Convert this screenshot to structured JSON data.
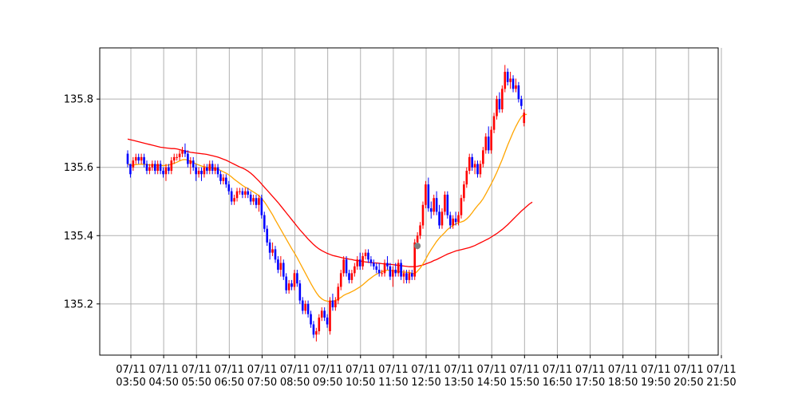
{
  "chart_data": {
    "type": "candlestick",
    "title": "",
    "xlabel": "",
    "ylabel": "",
    "ylim": [
      135.05,
      135.95
    ],
    "grid": true,
    "legend": "none",
    "y_ticks": [
      135.2,
      135.4,
      135.6,
      135.8
    ],
    "y_tick_labels": [
      "135.2",
      "135.4",
      "135.6",
      "135.8"
    ],
    "x_ticks": [
      {
        "date": "07/11",
        "time": "03:50"
      },
      {
        "date": "07/11",
        "time": "04:50"
      },
      {
        "date": "07/11",
        "time": "05:50"
      },
      {
        "date": "07/11",
        "time": "06:50"
      },
      {
        "date": "07/11",
        "time": "07:50"
      },
      {
        "date": "07/11",
        "time": "08:50"
      },
      {
        "date": "07/11",
        "time": "09:50"
      },
      {
        "date": "07/11",
        "time": "10:50"
      },
      {
        "date": "07/11",
        "time": "11:50"
      },
      {
        "date": "07/11",
        "time": "12:50"
      },
      {
        "date": "07/11",
        "time": "13:50"
      },
      {
        "date": "07/11",
        "time": "14:50"
      },
      {
        "date": "07/11",
        "time": "15:50"
      },
      {
        "date": "07/11",
        "time": "16:50"
      },
      {
        "date": "07/11",
        "time": "17:50"
      },
      {
        "date": "07/11",
        "time": "18:50"
      },
      {
        "date": "07/11",
        "time": "19:50"
      },
      {
        "date": "07/11",
        "time": "20:50"
      },
      {
        "date": "07/11",
        "time": "21:50"
      }
    ],
    "bar_interval_minutes": 5,
    "first_bar_time": "07/11 03:50",
    "up_color": "#ff0000",
    "down_color": "#0000ff",
    "candles": [
      [
        135.64,
        135.65,
        135.6,
        135.61
      ],
      [
        135.61,
        135.61,
        135.57,
        135.58
      ],
      [
        135.6,
        135.63,
        135.59,
        135.62
      ],
      [
        135.62,
        135.64,
        135.61,
        135.63
      ],
      [
        135.63,
        135.64,
        135.61,
        135.62
      ],
      [
        135.62,
        135.64,
        135.61,
        135.63
      ],
      [
        135.63,
        135.64,
        135.6,
        135.61
      ],
      [
        135.61,
        135.62,
        135.58,
        135.59
      ],
      [
        135.59,
        135.61,
        135.58,
        135.6
      ],
      [
        135.6,
        135.62,
        135.59,
        135.61
      ],
      [
        135.61,
        135.62,
        135.58,
        135.59
      ],
      [
        135.59,
        135.62,
        135.58,
        135.61
      ],
      [
        135.61,
        135.62,
        135.58,
        135.59
      ],
      [
        135.59,
        135.6,
        135.57,
        135.58
      ],
      [
        135.58,
        135.61,
        135.56,
        135.6
      ],
      [
        135.6,
        135.61,
        135.58,
        135.59
      ],
      [
        135.59,
        135.63,
        135.58,
        135.62
      ],
      [
        135.62,
        135.64,
        135.61,
        135.63
      ],
      [
        135.63,
        135.64,
        135.62,
        135.63
      ],
      [
        135.63,
        135.65,
        135.62,
        135.64
      ],
      [
        135.64,
        135.66,
        135.63,
        135.65
      ],
      [
        135.65,
        135.67,
        135.63,
        135.64
      ],
      [
        135.64,
        135.65,
        135.6,
        135.61
      ],
      [
        135.61,
        135.63,
        135.58,
        135.62
      ],
      [
        135.62,
        135.63,
        135.59,
        135.6
      ],
      [
        135.6,
        135.61,
        135.56,
        135.58
      ],
      [
        135.58,
        135.6,
        135.57,
        135.59
      ],
      [
        135.59,
        135.6,
        135.56,
        135.58
      ],
      [
        135.58,
        135.61,
        135.57,
        135.6
      ],
      [
        135.6,
        135.61,
        135.58,
        135.59
      ],
      [
        135.59,
        135.62,
        135.58,
        135.61
      ],
      [
        135.61,
        135.62,
        135.58,
        135.59
      ],
      [
        135.59,
        135.61,
        135.58,
        135.6
      ],
      [
        135.6,
        135.61,
        135.57,
        135.58
      ],
      [
        135.58,
        135.59,
        135.55,
        135.56
      ],
      [
        135.56,
        135.58,
        135.55,
        135.57
      ],
      [
        135.57,
        135.58,
        135.54,
        135.55
      ],
      [
        135.55,
        135.56,
        135.52,
        135.53
      ],
      [
        135.53,
        135.54,
        135.49,
        135.5
      ],
      [
        135.5,
        135.52,
        135.49,
        135.51
      ],
      [
        135.51,
        135.54,
        135.5,
        135.53
      ],
      [
        135.53,
        135.54,
        135.52,
        135.53
      ],
      [
        135.53,
        135.54,
        135.51,
        135.52
      ],
      [
        135.52,
        135.54,
        135.51,
        135.53
      ],
      [
        135.53,
        135.54,
        135.51,
        135.52
      ],
      [
        135.52,
        135.53,
        135.49,
        135.5
      ],
      [
        135.5,
        135.52,
        135.49,
        135.51
      ],
      [
        135.51,
        135.52,
        135.48,
        135.49
      ],
      [
        135.49,
        135.52,
        135.47,
        135.51
      ],
      [
        135.51,
        135.52,
        135.45,
        135.46
      ],
      [
        135.46,
        135.47,
        135.41,
        135.42
      ],
      [
        135.42,
        135.43,
        135.37,
        135.38
      ],
      [
        135.38,
        135.39,
        135.33,
        135.35
      ],
      [
        135.35,
        135.38,
        135.34,
        135.36
      ],
      [
        135.36,
        135.37,
        135.32,
        135.33
      ],
      [
        135.33,
        135.34,
        135.29,
        135.3
      ],
      [
        135.3,
        135.34,
        135.28,
        135.32
      ],
      [
        135.32,
        135.33,
        135.27,
        135.28
      ],
      [
        135.28,
        135.29,
        135.23,
        135.24
      ],
      [
        135.24,
        135.27,
        135.23,
        135.26
      ],
      [
        135.26,
        135.27,
        135.24,
        135.25
      ],
      [
        135.25,
        135.3,
        135.24,
        135.29
      ],
      [
        135.29,
        135.3,
        135.25,
        135.26
      ],
      [
        135.26,
        135.27,
        135.2,
        135.21
      ],
      [
        135.21,
        135.22,
        135.17,
        135.18
      ],
      [
        135.18,
        135.21,
        135.17,
        135.2
      ],
      [
        135.2,
        135.21,
        135.16,
        135.17
      ],
      [
        135.17,
        135.18,
        135.13,
        135.14
      ],
      [
        135.14,
        135.15,
        135.1,
        135.11
      ],
      [
        135.11,
        135.13,
        135.09,
        135.12
      ],
      [
        135.12,
        135.17,
        135.11,
        135.16
      ],
      [
        135.16,
        135.19,
        135.15,
        135.18
      ],
      [
        135.18,
        135.19,
        135.15,
        135.16
      ],
      [
        135.16,
        135.17,
        135.13,
        135.14
      ],
      [
        135.12,
        135.22,
        135.11,
        135.21
      ],
      [
        135.21,
        135.23,
        135.18,
        135.19
      ],
      [
        135.19,
        135.22,
        135.18,
        135.21
      ],
      [
        135.21,
        135.26,
        135.2,
        135.25
      ],
      [
        135.25,
        135.3,
        135.24,
        135.29
      ],
      [
        135.29,
        135.34,
        135.28,
        135.33
      ],
      [
        135.33,
        135.34,
        135.28,
        135.29
      ],
      [
        135.29,
        135.3,
        135.26,
        135.27
      ],
      [
        135.27,
        135.3,
        135.26,
        135.29
      ],
      [
        135.29,
        135.32,
        135.28,
        135.31
      ],
      [
        135.31,
        135.34,
        135.3,
        135.33
      ],
      [
        135.33,
        135.35,
        135.3,
        135.31
      ],
      [
        135.31,
        135.35,
        135.3,
        135.34
      ],
      [
        135.34,
        135.36,
        135.33,
        135.35
      ],
      [
        135.35,
        135.36,
        135.32,
        135.33
      ],
      [
        135.33,
        135.34,
        135.31,
        135.32
      ],
      [
        135.32,
        135.33,
        135.3,
        135.31
      ],
      [
        135.31,
        135.32,
        135.29,
        135.3
      ],
      [
        135.3,
        135.32,
        135.28,
        135.29
      ],
      [
        135.29,
        135.3,
        135.28,
        135.29
      ],
      [
        135.29,
        135.33,
        135.28,
        135.32
      ],
      [
        135.32,
        135.34,
        135.3,
        135.31
      ],
      [
        135.31,
        135.32,
        135.27,
        135.28
      ],
      [
        135.28,
        135.31,
        135.25,
        135.3
      ],
      [
        135.3,
        135.32,
        135.28,
        135.29
      ],
      [
        135.29,
        135.33,
        135.28,
        135.32
      ],
      [
        135.32,
        135.33,
        135.27,
        135.28
      ],
      [
        135.28,
        135.3,
        135.26,
        135.29
      ],
      [
        135.29,
        135.3,
        135.26,
        135.27
      ],
      [
        135.27,
        135.3,
        135.26,
        135.29
      ],
      [
        135.29,
        135.3,
        135.27,
        135.28
      ],
      [
        135.28,
        135.39,
        135.27,
        135.38
      ],
      [
        135.38,
        135.41,
        135.36,
        135.4
      ],
      [
        135.4,
        135.44,
        135.39,
        135.43
      ],
      [
        135.43,
        135.5,
        135.42,
        135.49
      ],
      [
        135.49,
        135.56,
        135.48,
        135.55
      ],
      [
        135.55,
        135.57,
        135.47,
        135.48
      ],
      [
        135.48,
        135.5,
        135.45,
        135.47
      ],
      [
        135.47,
        135.52,
        135.46,
        135.51
      ],
      [
        135.51,
        135.53,
        135.46,
        135.47
      ],
      [
        135.47,
        135.49,
        135.42,
        135.43
      ],
      [
        135.43,
        135.48,
        135.42,
        135.47
      ],
      [
        135.47,
        135.53,
        135.46,
        135.52
      ],
      [
        135.52,
        135.53,
        135.45,
        135.46
      ],
      [
        135.46,
        135.47,
        135.42,
        135.43
      ],
      [
        135.43,
        135.46,
        135.42,
        135.45
      ],
      [
        135.45,
        135.47,
        135.43,
        135.44
      ],
      [
        135.44,
        135.47,
        135.43,
        135.46
      ],
      [
        135.46,
        135.52,
        135.45,
        135.51
      ],
      [
        135.51,
        135.56,
        135.5,
        135.55
      ],
      [
        135.55,
        135.6,
        135.54,
        135.59
      ],
      [
        135.59,
        135.64,
        135.58,
        135.63
      ],
      [
        135.63,
        135.64,
        135.59,
        135.6
      ],
      [
        135.6,
        135.62,
        135.58,
        135.61
      ],
      [
        135.61,
        135.62,
        135.57,
        135.58
      ],
      [
        135.58,
        135.62,
        135.57,
        135.61
      ],
      [
        135.61,
        135.66,
        135.6,
        135.65
      ],
      [
        135.65,
        135.7,
        135.64,
        135.69
      ],
      [
        135.69,
        135.72,
        135.64,
        135.65
      ],
      [
        135.65,
        135.72,
        135.64,
        135.71
      ],
      [
        135.71,
        135.76,
        135.7,
        135.75
      ],
      [
        135.75,
        135.81,
        135.74,
        135.8
      ],
      [
        135.8,
        135.82,
        135.76,
        135.77
      ],
      [
        135.77,
        135.84,
        135.76,
        135.83
      ],
      [
        135.83,
        135.9,
        135.82,
        135.88
      ],
      [
        135.88,
        135.89,
        135.84,
        135.85
      ],
      [
        135.85,
        135.88,
        135.83,
        135.86
      ],
      [
        135.86,
        135.87,
        135.82,
        135.83
      ],
      [
        135.83,
        135.86,
        135.82,
        135.84
      ],
      [
        135.84,
        135.85,
        135.79,
        135.8
      ],
      [
        135.8,
        135.81,
        135.77,
        135.78
      ],
      [
        135.73,
        135.77,
        135.72,
        135.76
      ]
    ],
    "sma_short": {
      "color": "#ffa500",
      "values": [
        135.61,
        135.605,
        135.607,
        135.608,
        135.609,
        135.609,
        135.609,
        135.608,
        135.607,
        135.607,
        135.607,
        135.606,
        135.606,
        135.605,
        135.606,
        135.607,
        135.609,
        135.612,
        135.615,
        135.619,
        135.622,
        135.623,
        135.621,
        135.618,
        135.614,
        135.61,
        135.607,
        135.604,
        135.602,
        135.6,
        135.6,
        135.598,
        135.596,
        135.594,
        135.591,
        135.587,
        135.583,
        135.578,
        135.572,
        135.565,
        135.559,
        135.553,
        135.547,
        135.542,
        135.538,
        135.533,
        135.528,
        135.523,
        135.517,
        135.509,
        135.499,
        135.487,
        135.474,
        135.461,
        135.446,
        135.432,
        135.418,
        135.404,
        135.39,
        135.376,
        135.362,
        135.349,
        135.335,
        135.32,
        135.305,
        135.29,
        135.275,
        135.26,
        135.246,
        135.233,
        135.222,
        135.215,
        135.21,
        135.208,
        135.207,
        135.208,
        135.21,
        135.214,
        135.219,
        135.225,
        135.229,
        135.232,
        135.236,
        135.24,
        135.245,
        135.25,
        135.256,
        135.263,
        135.27,
        135.276,
        135.282,
        135.287,
        135.291,
        135.294,
        135.297,
        135.299,
        135.298,
        135.297,
        135.296,
        135.295,
        135.294,
        135.293,
        135.293,
        135.292,
        135.29,
        135.288,
        135.296,
        135.305,
        135.317,
        135.331,
        135.346,
        135.359,
        135.371,
        135.383,
        135.393,
        135.401,
        135.409,
        135.418,
        135.424,
        135.43,
        135.434,
        135.438,
        135.44,
        135.443,
        135.449,
        135.457,
        135.467,
        135.478,
        135.488,
        135.497,
        135.508,
        135.522,
        135.537,
        135.552,
        135.568,
        135.585,
        135.604,
        135.623,
        135.644,
        135.665,
        135.684,
        135.703,
        135.72,
        135.735,
        135.748,
        135.755,
        135.755
      ]
    },
    "sma_long": {
      "color": "#ff0000",
      "values": [
        135.683,
        135.681,
        135.679,
        135.677,
        135.675,
        135.673,
        135.671,
        135.669,
        135.667,
        135.665,
        135.663,
        135.661,
        135.659,
        135.658,
        135.657,
        135.656,
        135.655,
        135.655,
        135.654,
        135.652,
        135.65,
        135.648,
        135.646,
        135.644,
        135.643,
        135.642,
        135.641,
        135.64,
        135.639,
        135.638,
        135.636,
        135.634,
        135.632,
        135.63,
        135.627,
        135.624,
        135.621,
        135.617,
        135.613,
        135.609,
        135.605,
        135.601,
        135.598,
        135.594,
        135.589,
        135.583,
        135.576,
        135.568,
        135.56,
        135.551,
        135.542,
        135.533,
        135.524,
        135.515,
        135.506,
        135.497,
        135.487,
        135.477,
        135.467,
        135.457,
        135.447,
        135.437,
        135.427,
        135.417,
        135.408,
        135.399,
        135.39,
        135.382,
        135.374,
        135.367,
        135.361,
        135.356,
        135.352,
        135.348,
        135.345,
        135.342,
        135.34,
        135.338,
        135.336,
        135.334,
        135.333,
        135.331,
        135.33,
        135.328,
        135.327,
        135.326,
        135.324,
        135.323,
        135.322,
        135.321,
        135.32,
        135.32,
        135.319,
        135.318,
        135.317,
        135.316,
        135.316,
        135.315,
        135.314,
        135.313,
        135.312,
        135.311,
        135.31,
        135.309,
        135.309,
        135.309,
        135.31,
        135.312,
        135.314,
        135.317,
        135.32,
        135.323,
        135.327,
        135.33,
        135.334,
        135.338,
        135.342,
        135.346,
        135.349,
        135.352,
        135.355,
        135.357,
        135.359,
        135.361,
        135.363,
        135.365,
        135.368,
        135.371,
        135.375,
        135.379,
        135.383,
        135.387,
        135.391,
        135.396,
        135.401,
        135.406,
        135.412,
        135.418,
        135.425,
        135.432,
        135.44,
        135.448,
        135.456,
        135.464,
        135.472,
        135.479,
        135.486,
        135.493,
        135.498
      ]
    },
    "marker": {
      "bar_index": 106,
      "value": 135.37,
      "color": "#808080"
    }
  }
}
